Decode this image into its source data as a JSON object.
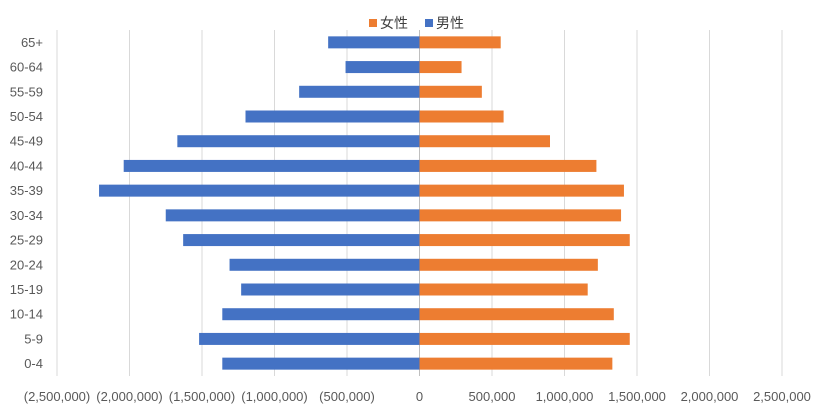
{
  "chart_data": {
    "type": "bar",
    "orientation": "horizontal",
    "categories": [
      "0-4",
      "5-9",
      "10-14",
      "15-19",
      "20-24",
      "25-29",
      "30-34",
      "35-39",
      "40-44",
      "45-49",
      "50-54",
      "55-59",
      "60-64",
      "65+"
    ],
    "series": [
      {
        "name": "女性",
        "color": "#ED7D31",
        "values": [
          1330000,
          1450000,
          1340000,
          1160000,
          1230000,
          1450000,
          1390000,
          1410000,
          1220000,
          900000,
          580000,
          430000,
          290000,
          560000
        ]
      },
      {
        "name": "男性",
        "color": "#4472C4",
        "values": [
          -1360000,
          -1520000,
          -1360000,
          -1230000,
          -1310000,
          -1630000,
          -1750000,
          -2210000,
          -2040000,
          -1670000,
          -1200000,
          -830000,
          -510000,
          -630000
        ]
      }
    ],
    "xlim": [
      -2500000,
      2500000
    ],
    "x_ticks": [
      -2500000,
      -2000000,
      -1500000,
      -1000000,
      -500000,
      0,
      500000,
      1000000,
      1500000,
      2000000,
      2500000
    ],
    "x_tick_labels": [
      "(2,500,000)",
      "(2,000,000)",
      "(1,500,000)",
      "(1,000,000)",
      "(500,000)",
      "0",
      "500,000",
      "1,000,000",
      "1,500,000",
      "2,000,000",
      "2,500,000"
    ],
    "grid": "vertical",
    "legend": "top-center"
  }
}
